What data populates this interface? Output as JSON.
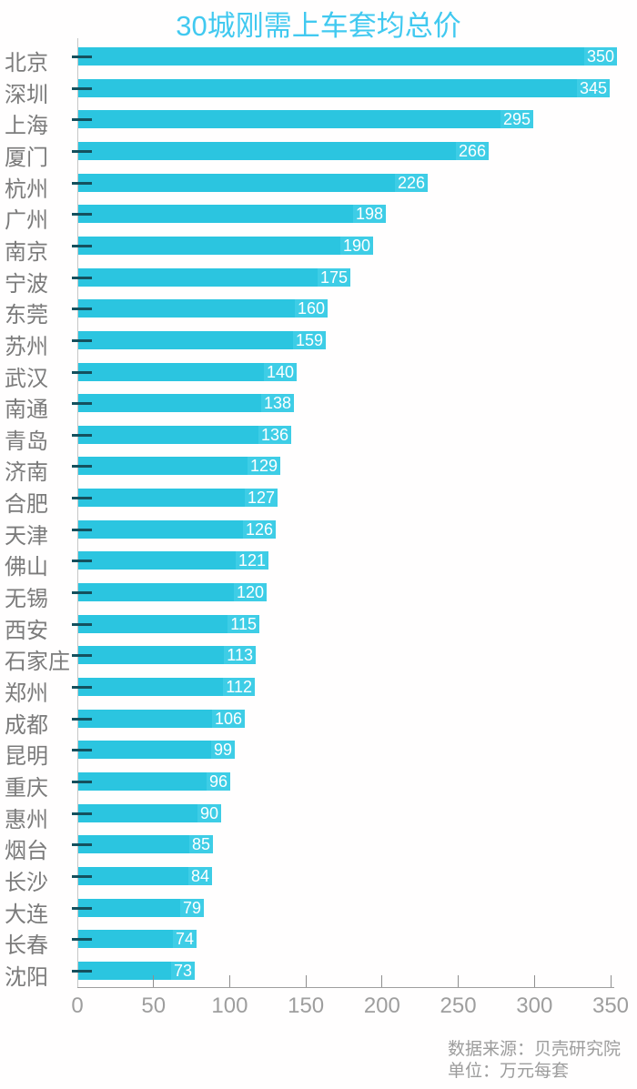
{
  "title": "30城刚需上车套均总价",
  "chart_data": {
    "type": "bar",
    "orientation": "horizontal",
    "title": "30城刚需上车套均总价",
    "categories": [
      "北京",
      "深圳",
      "上海",
      "厦门",
      "杭州",
      "广州",
      "南京",
      "宁波",
      "东莞",
      "苏州",
      "武汉",
      "南通",
      "青岛",
      "济南",
      "合肥",
      "天津",
      "佛山",
      "无锡",
      "西安",
      "石家庄",
      "郑州",
      "成都",
      "昆明",
      "重庆",
      "惠州",
      "烟台",
      "长沙",
      "大连",
      "长春",
      "沈阳"
    ],
    "values": [
      350,
      345,
      295,
      266,
      226,
      198,
      190,
      175,
      160,
      159,
      140,
      138,
      136,
      129,
      127,
      126,
      121,
      120,
      115,
      113,
      112,
      106,
      99,
      96,
      90,
      85,
      84,
      79,
      74,
      73
    ],
    "xlabel": "",
    "ylabel": "",
    "xlim": [
      0,
      350
    ],
    "x_ticks": [
      0,
      50,
      100,
      150,
      200,
      250,
      300,
      350
    ],
    "grid": false,
    "legend": "none",
    "value_labels": "inside-right",
    "colors": {
      "bar": "#2bc5e0",
      "bar_label_bg": "#3ecde6",
      "bar_label_text": "#ffffff",
      "title": "#41c9f0",
      "city_label": "#7b7b7b",
      "axis": "#9e9e9e",
      "tick_dash": "#15505d"
    }
  },
  "footer": {
    "source": "数据来源：贝壳研究院",
    "unit": "单位：万元每套"
  }
}
